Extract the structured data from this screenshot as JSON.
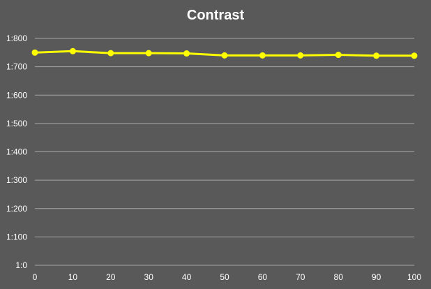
{
  "chart_data": {
    "type": "line",
    "title": "Contrast",
    "xlabel": "",
    "ylabel": "",
    "x": [
      0,
      10,
      20,
      30,
      40,
      50,
      60,
      70,
      80,
      90,
      100
    ],
    "x_tick_labels": [
      "0",
      "10",
      "20",
      "30",
      "40",
      "50",
      "60",
      "70",
      "80",
      "90",
      "100"
    ],
    "y_ticks": [
      0,
      100,
      200,
      300,
      400,
      500,
      600,
      700,
      800
    ],
    "y_tick_labels": [
      "1:0",
      "1:100",
      "1:200",
      "1:300",
      "1:400",
      "1:500",
      "1:600",
      "1:700",
      "1:800"
    ],
    "ylim": [
      0,
      800
    ],
    "xlim": [
      0,
      100
    ],
    "grid": true,
    "legend": "none",
    "series": [
      {
        "values": [
          750,
          755,
          748,
          748,
          747,
          740,
          740,
          740,
          742,
          739,
          739
        ],
        "color": "#ffff00"
      }
    ],
    "colors": {
      "background": "#595959",
      "gridline": "#a6a6a6",
      "text": "#ffffff",
      "line": "#ffff00"
    }
  }
}
